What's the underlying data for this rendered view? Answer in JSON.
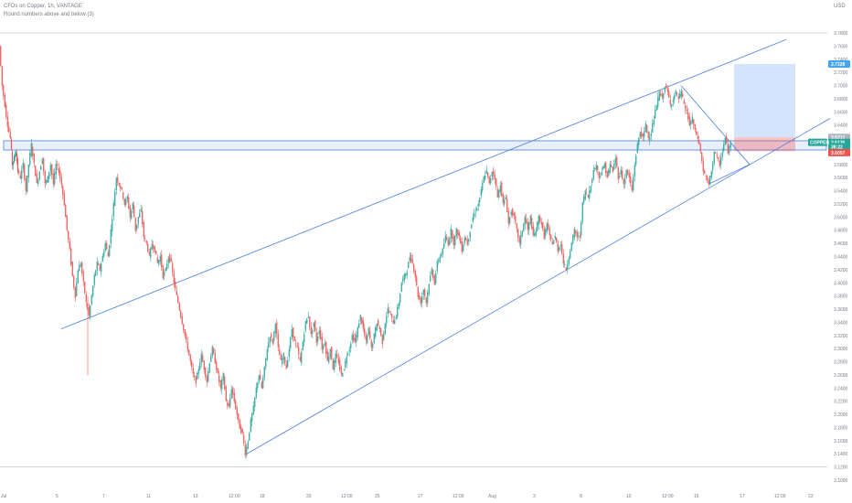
{
  "header": {
    "title": "CFDs on Copper, 1h, VANTAGE",
    "subtitle": "Round numbers above and below (3)",
    "currency": "USD"
  },
  "chart_data": {
    "type": "candlestick",
    "title": "CFDs on Copper, 1h, VANTAGE",
    "ylabel": "USD",
    "ylim": [
      3.09,
      3.85
    ],
    "grid": false,
    "y_ticks": [
      "3.7800",
      "3.7600",
      "3.7400",
      "3.7200",
      "3.7000",
      "3.6800",
      "3.6600",
      "3.6400",
      "3.6200",
      "3.6000",
      "3.5800",
      "3.5600",
      "3.5400",
      "3.5200",
      "3.5000",
      "3.4800",
      "3.4600",
      "3.4400",
      "3.4200",
      "3.4000",
      "3.3800",
      "3.3600",
      "3.3400",
      "3.3200",
      "3.3000",
      "3.2800",
      "3.2600",
      "3.2400",
      "3.2200",
      "3.2000",
      "3.1800",
      "3.1600",
      "3.1400",
      "3.1200",
      "3.1000"
    ],
    "x_ticks": [
      "Jul",
      "5",
      "7",
      "11",
      "13",
      "12:00",
      "18",
      "20",
      "12:00",
      "25",
      "27",
      "12:00",
      "Aug",
      "3",
      "8",
      "10",
      "12:00",
      "15",
      "17",
      "12:00",
      "22"
    ],
    "round_number_lines": [
      3.78,
      3.12
    ],
    "price_path": [
      [
        0,
        3.76
      ],
      [
        3,
        3.7
      ],
      [
        6,
        3.67
      ],
      [
        9,
        3.64
      ],
      [
        12,
        3.62
      ],
      [
        14,
        3.58
      ],
      [
        16,
        3.59
      ],
      [
        18,
        3.6
      ],
      [
        20,
        3.57
      ],
      [
        23,
        3.56
      ],
      [
        26,
        3.58
      ],
      [
        29,
        3.54
      ],
      [
        32,
        3.58
      ],
      [
        35,
        3.61
      ],
      [
        38,
        3.58
      ],
      [
        41,
        3.55
      ],
      [
        44,
        3.57
      ],
      [
        47,
        3.59
      ],
      [
        50,
        3.55
      ],
      [
        53,
        3.56
      ],
      [
        56,
        3.58
      ],
      [
        59,
        3.55
      ],
      [
        62,
        3.58
      ],
      [
        65,
        3.57
      ],
      [
        68,
        3.55
      ],
      [
        71,
        3.52
      ],
      [
        74,
        3.48
      ],
      [
        77,
        3.45
      ],
      [
        80,
        3.41
      ],
      [
        83,
        3.38
      ],
      [
        86,
        3.42
      ],
      [
        89,
        3.43
      ],
      [
        92,
        3.4
      ],
      [
        95,
        3.37
      ],
      [
        98,
        3.35
      ],
      [
        101,
        3.38
      ],
      [
        104,
        3.41
      ],
      [
        107,
        3.43
      ],
      [
        110,
        3.42
      ],
      [
        113,
        3.44
      ],
      [
        116,
        3.46
      ],
      [
        119,
        3.44
      ],
      [
        122,
        3.48
      ],
      [
        125,
        3.52
      ],
      [
        128,
        3.56
      ],
      [
        131,
        3.55
      ],
      [
        134,
        3.54
      ],
      [
        137,
        3.52
      ],
      [
        140,
        3.53
      ],
      [
        143,
        3.5
      ],
      [
        146,
        3.52
      ],
      [
        149,
        3.48
      ],
      [
        152,
        3.5
      ],
      [
        155,
        3.51
      ],
      [
        158,
        3.47
      ],
      [
        161,
        3.46
      ],
      [
        164,
        3.44
      ],
      [
        167,
        3.46
      ],
      [
        170,
        3.45
      ],
      [
        173,
        3.43
      ],
      [
        176,
        3.44
      ],
      [
        179,
        3.41
      ],
      [
        182,
        3.42
      ],
      [
        185,
        3.44
      ],
      [
        188,
        3.43
      ],
      [
        191,
        3.4
      ],
      [
        194,
        3.38
      ],
      [
        197,
        3.36
      ],
      [
        200,
        3.34
      ],
      [
        203,
        3.32
      ],
      [
        206,
        3.3
      ],
      [
        209,
        3.28
      ],
      [
        212,
        3.26
      ],
      [
        215,
        3.25
      ],
      [
        218,
        3.27
      ],
      [
        221,
        3.29
      ],
      [
        224,
        3.27
      ],
      [
        227,
        3.25
      ],
      [
        230,
        3.28
      ],
      [
        233,
        3.3
      ],
      [
        236,
        3.28
      ],
      [
        239,
        3.26
      ],
      [
        242,
        3.24
      ],
      [
        245,
        3.26
      ],
      [
        248,
        3.22
      ],
      [
        251,
        3.21
      ],
      [
        254,
        3.24
      ],
      [
        257,
        3.22
      ],
      [
        260,
        3.2
      ],
      [
        263,
        3.18
      ],
      [
        266,
        3.17
      ],
      [
        269,
        3.14
      ],
      [
        272,
        3.16
      ],
      [
        275,
        3.19
      ],
      [
        278,
        3.21
      ],
      [
        281,
        3.24
      ],
      [
        284,
        3.26
      ],
      [
        287,
        3.24
      ],
      [
        290,
        3.27
      ],
      [
        293,
        3.3
      ],
      [
        296,
        3.32
      ],
      [
        299,
        3.31
      ],
      [
        302,
        3.34
      ],
      [
        305,
        3.3
      ],
      [
        308,
        3.28
      ],
      [
        311,
        3.29
      ],
      [
        314,
        3.27
      ],
      [
        317,
        3.3
      ],
      [
        320,
        3.33
      ],
      [
        323,
        3.31
      ],
      [
        326,
        3.3
      ],
      [
        329,
        3.28
      ],
      [
        332,
        3.31
      ],
      [
        335,
        3.34
      ],
      [
        338,
        3.35
      ],
      [
        341,
        3.32
      ],
      [
        344,
        3.34
      ],
      [
        347,
        3.31
      ],
      [
        350,
        3.33
      ],
      [
        353,
        3.3
      ],
      [
        356,
        3.31
      ],
      [
        359,
        3.28
      ],
      [
        362,
        3.3
      ],
      [
        365,
        3.27
      ],
      [
        368,
        3.29
      ],
      [
        371,
        3.28
      ],
      [
        374,
        3.26
      ],
      [
        377,
        3.27
      ],
      [
        380,
        3.29
      ],
      [
        383,
        3.3
      ],
      [
        386,
        3.32
      ],
      [
        389,
        3.31
      ],
      [
        392,
        3.33
      ],
      [
        395,
        3.35
      ],
      [
        398,
        3.33
      ],
      [
        401,
        3.31
      ],
      [
        404,
        3.33
      ],
      [
        407,
        3.3
      ],
      [
        410,
        3.32
      ],
      [
        413,
        3.34
      ],
      [
        416,
        3.33
      ],
      [
        419,
        3.31
      ],
      [
        422,
        3.34
      ],
      [
        425,
        3.36
      ],
      [
        428,
        3.35
      ],
      [
        431,
        3.34
      ],
      [
        434,
        3.35
      ],
      [
        437,
        3.37
      ],
      [
        440,
        3.4
      ],
      [
        443,
        3.41
      ],
      [
        446,
        3.42
      ],
      [
        449,
        3.44
      ],
      [
        452,
        3.43
      ],
      [
        455,
        3.41
      ],
      [
        458,
        3.38
      ],
      [
        461,
        3.37
      ],
      [
        464,
        3.39
      ],
      [
        467,
        3.37
      ],
      [
        470,
        3.4
      ],
      [
        473,
        3.42
      ],
      [
        476,
        3.4
      ],
      [
        479,
        3.43
      ],
      [
        482,
        3.44
      ],
      [
        485,
        3.45
      ],
      [
        488,
        3.47
      ],
      [
        491,
        3.46
      ],
      [
        494,
        3.48
      ],
      [
        497,
        3.46
      ],
      [
        500,
        3.48
      ],
      [
        503,
        3.47
      ],
      [
        506,
        3.45
      ],
      [
        509,
        3.47
      ],
      [
        512,
        3.46
      ],
      [
        515,
        3.48
      ],
      [
        518,
        3.5
      ],
      [
        521,
        3.51
      ],
      [
        524,
        3.52
      ],
      [
        527,
        3.54
      ],
      [
        530,
        3.56
      ],
      [
        533,
        3.57
      ],
      [
        536,
        3.55
      ],
      [
        539,
        3.57
      ],
      [
        542,
        3.56
      ],
      [
        545,
        3.53
      ],
      [
        548,
        3.55
      ],
      [
        551,
        3.52
      ],
      [
        554,
        3.53
      ],
      [
        557,
        3.49
      ],
      [
        560,
        3.51
      ],
      [
        563,
        3.5
      ],
      [
        566,
        3.48
      ],
      [
        569,
        3.46
      ],
      [
        572,
        3.48
      ],
      [
        575,
        3.5
      ],
      [
        578,
        3.48
      ],
      [
        581,
        3.5
      ],
      [
        584,
        3.47
      ],
      [
        587,
        3.48
      ],
      [
        590,
        3.5
      ],
      [
        593,
        3.49
      ],
      [
        596,
        3.47
      ],
      [
        599,
        3.49
      ],
      [
        602,
        3.47
      ],
      [
        605,
        3.46
      ],
      [
        608,
        3.47
      ],
      [
        611,
        3.45
      ],
      [
        614,
        3.46
      ],
      [
        617,
        3.43
      ],
      [
        620,
        3.42
      ],
      [
        623,
        3.44
      ],
      [
        626,
        3.46
      ],
      [
        629,
        3.48
      ],
      [
        632,
        3.47
      ],
      [
        635,
        3.47
      ],
      [
        638,
        3.52
      ],
      [
        641,
        3.54
      ],
      [
        644,
        3.53
      ],
      [
        647,
        3.55
      ],
      [
        650,
        3.57
      ],
      [
        653,
        3.58
      ],
      [
        656,
        3.56
      ],
      [
        659,
        3.57
      ],
      [
        662,
        3.58
      ],
      [
        665,
        3.56
      ],
      [
        668,
        3.58
      ],
      [
        671,
        3.57
      ],
      [
        674,
        3.59
      ],
      [
        677,
        3.56
      ],
      [
        680,
        3.57
      ],
      [
        683,
        3.55
      ],
      [
        686,
        3.57
      ],
      [
        689,
        3.56
      ],
      [
        692,
        3.54
      ],
      [
        695,
        3.58
      ],
      [
        698,
        3.61
      ],
      [
        701,
        3.63
      ],
      [
        704,
        3.62
      ],
      [
        707,
        3.64
      ],
      [
        710,
        3.62
      ],
      [
        713,
        3.63
      ],
      [
        716,
        3.65
      ],
      [
        719,
        3.67
      ],
      [
        722,
        3.69
      ],
      [
        725,
        3.68
      ],
      [
        728,
        3.7
      ],
      [
        731,
        3.69
      ],
      [
        734,
        3.67
      ],
      [
        737,
        3.68
      ],
      [
        740,
        3.69
      ],
      [
        743,
        3.68
      ],
      [
        746,
        3.69
      ],
      [
        749,
        3.67
      ],
      [
        752,
        3.66
      ],
      [
        755,
        3.64
      ],
      [
        758,
        3.65
      ],
      [
        761,
        3.63
      ],
      [
        764,
        3.62
      ],
      [
        767,
        3.6
      ],
      [
        770,
        3.57
      ],
      [
        773,
        3.56
      ],
      [
        776,
        3.55
      ],
      [
        779,
        3.57
      ],
      [
        782,
        3.6
      ],
      [
        785,
        3.59
      ],
      [
        788,
        3.58
      ],
      [
        791,
        3.6
      ],
      [
        794,
        3.62
      ],
      [
        797,
        3.6
      ],
      [
        800,
        3.61
      ]
    ],
    "wedge_upper": [
      [
        67,
        3.33
      ],
      [
        860,
        3.77
      ]
    ],
    "wedge_lower": [
      [
        270,
        3.14
      ],
      [
        908,
        3.65
      ]
    ],
    "triangle_upper": [
      [
        745,
        3.7
      ],
      [
        820,
        3.58
      ]
    ],
    "triangle_lower": [
      [
        775,
        3.55
      ],
      [
        820,
        3.58
      ]
    ],
    "resistance_zone": [
      3.616,
      3.602
    ],
    "position": {
      "take_profit": 3.7328,
      "entry": 3.6212,
      "stop": 3.6057
    },
    "price_tags": [
      {
        "label": "3.7328",
        "value": 3.7328,
        "color": "#42a5f5"
      },
      {
        "label": "3.6212",
        "value": 3.6212,
        "color": "#b0b4bd"
      },
      {
        "label": "3.6136",
        "value": 3.6136,
        "color": "#26a69a"
      },
      {
        "label": "38:22",
        "value": 3.607,
        "color": "#26a69a"
      },
      {
        "label": "3.6057",
        "value": 3.598,
        "color": "#ef5350"
      }
    ],
    "symbol_badge": "COPPER"
  }
}
